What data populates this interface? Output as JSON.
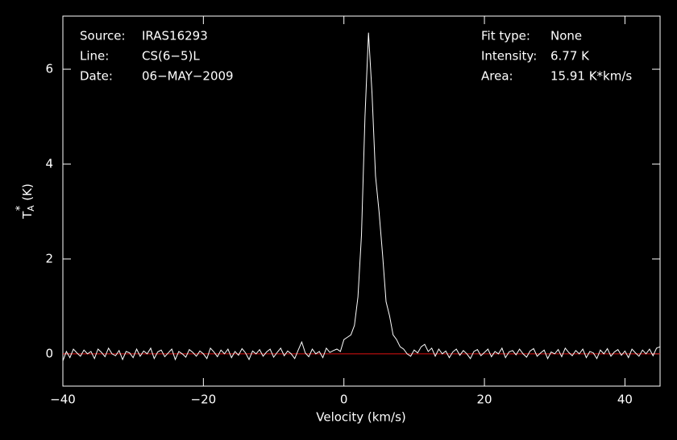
{
  "chart_data": {
    "type": "line",
    "xlabel": "Velocity (km/s)",
    "ylabel": {
      "main": "T",
      "sub": "A",
      "sup": "*",
      "unit": "(K)"
    },
    "info_left": [
      [
        "Source:",
        "IRAS16293"
      ],
      [
        "Line:",
        "CS(6−5)L"
      ],
      [
        "Date:",
        "06−MAY−2009"
      ]
    ],
    "info_right": [
      [
        "Fit type:",
        "None"
      ],
      [
        "Intensity:",
        "6.77 K"
      ],
      [
        "Area:",
        "15.91 K*km/s"
      ]
    ],
    "xlim": [
      -40,
      45
    ],
    "ylim": [
      -0.68,
      7.12
    ],
    "xticks": [
      {
        "value": -40,
        "label": "−40"
      },
      {
        "value": -20,
        "label": "−20"
      },
      0,
      20,
      40
    ],
    "yticks": [
      0,
      2,
      4,
      6
    ],
    "baseline": {
      "value": 0,
      "color": "#e01010"
    },
    "x": [
      -40,
      -39.5,
      -39,
      -38.5,
      -38,
      -37.5,
      -37,
      -36.5,
      -36,
      -35.5,
      -35,
      -34.5,
      -34,
      -33.5,
      -33,
      -32.5,
      -32,
      -31.5,
      -31,
      -30.5,
      -30,
      -29.5,
      -29,
      -28.5,
      -28,
      -27.5,
      -27,
      -26.5,
      -26,
      -25.5,
      -25,
      -24.5,
      -24,
      -23.5,
      -23,
      -22.5,
      -22,
      -21.5,
      -21,
      -20.5,
      -20,
      -19.5,
      -19,
      -18.5,
      -18,
      -17.5,
      -17,
      -16.5,
      -16,
      -15.5,
      -15,
      -14.5,
      -14,
      -13.5,
      -13,
      -12.5,
      -12,
      -11.5,
      -11,
      -10.5,
      -10,
      -9.5,
      -9,
      -8.5,
      -8,
      -7.5,
      -7,
      -6.5,
      -6,
      -5.5,
      -5,
      -4.5,
      -4,
      -3.5,
      -3,
      -2.5,
      -2,
      -1.5,
      -1,
      -0.5,
      0,
      0.5,
      1,
      1.5,
      2,
      2.5,
      3,
      3.5,
      4,
      4.5,
      5,
      5.5,
      6,
      6.5,
      7,
      7.5,
      8,
      8.5,
      9,
      9.5,
      10,
      10.5,
      11,
      11.5,
      12,
      12.5,
      13,
      13.5,
      14,
      14.5,
      15,
      15.5,
      16,
      16.5,
      17,
      17.5,
      18,
      18.5,
      19,
      19.5,
      20,
      20.5,
      21,
      21.5,
      22,
      22.5,
      23,
      23.5,
      24,
      24.5,
      25,
      25.5,
      26,
      26.5,
      27,
      27.5,
      28,
      28.5,
      29,
      29.5,
      30,
      30.5,
      31,
      31.5,
      32,
      32.5,
      33,
      33.5,
      34,
      34.5,
      35,
      35.5,
      36,
      36.5,
      37,
      37.5,
      38,
      38.5,
      39,
      39.5,
      40,
      40.5,
      41,
      41.5,
      42,
      42.5,
      43,
      43.5,
      44,
      44.5,
      45
    ],
    "series": [
      {
        "color": "#ffffff",
        "values": [
          -0.15,
          0.05,
          -0.08,
          0.1,
          0.02,
          -0.05,
          0.08,
          0.0,
          0.05,
          -0.1,
          0.1,
          0.03,
          -0.06,
          0.12,
          0.0,
          -0.04,
          0.07,
          -0.12,
          0.05,
          0.02,
          -0.08,
          0.1,
          -0.05,
          0.06,
          0.0,
          0.12,
          -0.1,
          0.04,
          0.08,
          -0.06,
          0.02,
          0.1,
          -0.12,
          0.05,
          0.0,
          -0.07,
          0.09,
          0.03,
          -0.05,
          0.06,
          0.0,
          -0.1,
          0.12,
          0.04,
          -0.06,
          0.08,
          0.0,
          0.1,
          -0.08,
          0.05,
          -0.03,
          0.11,
          0.02,
          -0.12,
          0.06,
          0.0,
          0.09,
          -0.05,
          0.04,
          0.1,
          -0.07,
          0.03,
          0.12,
          -0.04,
          0.06,
          0.0,
          -0.1,
          0.08,
          0.25,
          0.02,
          -0.06,
          0.1,
          0.0,
          0.05,
          -0.08,
          0.12,
          0.03,
          0.07,
          0.1,
          0.05,
          0.3,
          0.35,
          0.4,
          0.6,
          1.2,
          2.5,
          5.0,
          6.77,
          5.5,
          3.75,
          3.0,
          2.1,
          1.1,
          0.8,
          0.4,
          0.3,
          0.15,
          0.1,
          0.0,
          -0.05,
          0.08,
          0.02,
          0.15,
          0.2,
          0.05,
          0.12,
          -0.05,
          0.1,
          0.0,
          0.06,
          -0.08,
          0.04,
          0.1,
          -0.03,
          0.07,
          0.0,
          -0.1,
          0.05,
          0.09,
          -0.04,
          0.03,
          0.1,
          -0.06,
          0.05,
          0.0,
          0.12,
          -0.08,
          0.04,
          0.07,
          -0.02,
          0.1,
          0.0,
          -0.07,
          0.06,
          0.11,
          -0.05,
          0.02,
          0.08,
          -0.1,
          0.04,
          0.0,
          0.09,
          -0.06,
          0.12,
          0.03,
          -0.04,
          0.07,
          0.0,
          0.1,
          -0.08,
          0.05,
          0.02,
          -0.1,
          0.08,
          0.0,
          0.11,
          -0.05,
          0.04,
          0.09,
          -0.03,
          0.06,
          -0.08,
          0.1,
          0.02,
          -0.05,
          0.08,
          0.0,
          0.1,
          -0.04,
          0.12,
          0.15
        ]
      }
    ]
  }
}
